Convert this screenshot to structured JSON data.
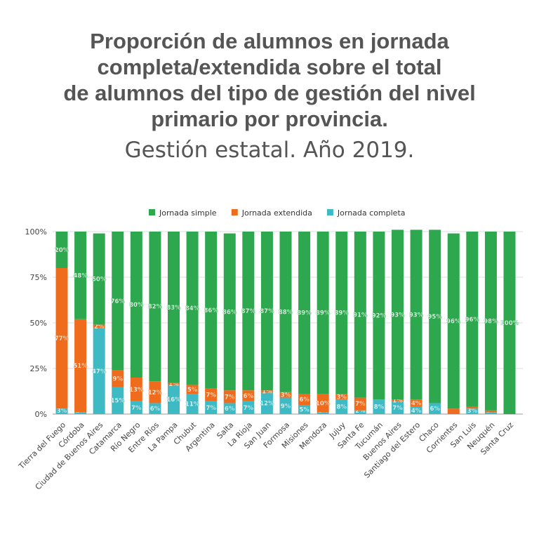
{
  "chart_data": {
    "type": "bar",
    "stacked": true,
    "title": "Proporción de alumnos en jornada completa/extendida sobre el total de alumnos del tipo de gestión del nivel primario por provincia.",
    "title_lines": [
      "Proporción de alumnos en jornada",
      "completa/extendida sobre el total",
      "de alumnos del tipo de gestión del nivel",
      "primario por provincia."
    ],
    "subtitle": "Gestión estatal. Año 2019.",
    "ylim": [
      0,
      100
    ],
    "yticks": [
      "0%",
      "25%",
      "50%",
      "75%",
      "100%"
    ],
    "grid": true,
    "legend_position": "top",
    "categories": [
      "Tierra del Fuego",
      "Córdoba",
      "Ciudad de Buenos Aires",
      "Catamarca",
      "Río Negro",
      "Entre Ríos",
      "La Pampa",
      "Chubut",
      "Argentina",
      "Salta",
      "La Rioja",
      "San Juan",
      "Formosa",
      "Misiones",
      "Mendoza",
      "Jujuy",
      "Santa Fe",
      "Tucumán",
      "Buenos Aires",
      "Santiago del Estero",
      "Chaco",
      "Corrientes",
      "San Luis",
      "Neuquén",
      "Santa Cruz"
    ],
    "series": [
      {
        "name": "Jornada completa",
        "color": "#3dbac4",
        "values": [
          3,
          1,
          47,
          15,
          7,
          6,
          16,
          11,
          7,
          6,
          7,
          12,
          9,
          5,
          1,
          8,
          2,
          8,
          7,
          4,
          6,
          0,
          3,
          1,
          0
        ]
      },
      {
        "name": "Jornada extendida",
        "color": "#ee6c1c",
        "values": [
          77,
          51,
          2,
          9,
          13,
          12,
          1,
          5,
          7,
          7,
          6,
          1,
          3,
          6,
          10,
          3,
          7,
          0,
          1,
          4,
          0,
          3,
          1,
          1,
          0
        ]
      },
      {
        "name": "Jornada simple",
        "color": "#2ea84f",
        "values": [
          20,
          48,
          50,
          76,
          80,
          82,
          83,
          84,
          86,
          86,
          87,
          87,
          88,
          89,
          89,
          89,
          91,
          92,
          93,
          93,
          95,
          96,
          96,
          98,
          100
        ]
      }
    ],
    "legend_order": [
      "Jornada simple",
      "Jornada extendida",
      "Jornada completa"
    ]
  }
}
